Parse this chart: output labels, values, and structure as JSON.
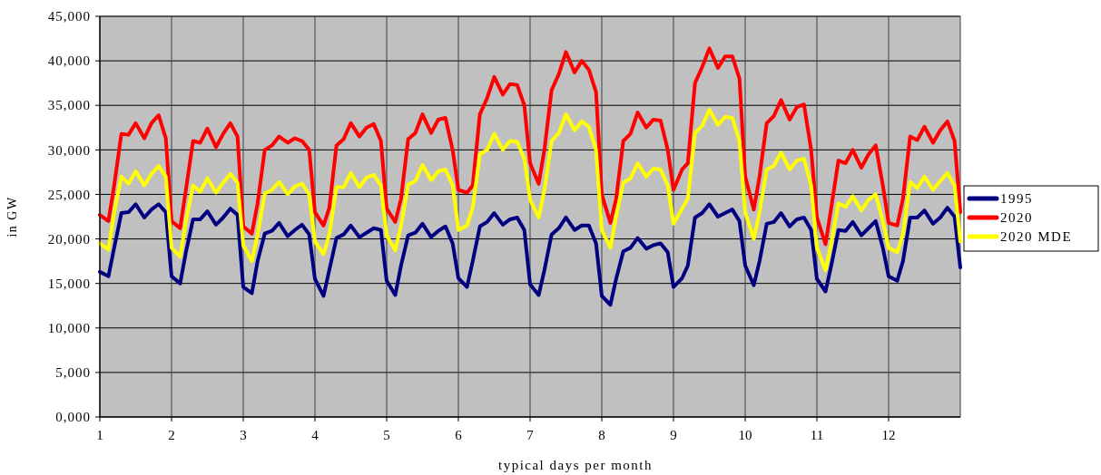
{
  "chart_data": {
    "type": "line",
    "xlabel": "typical days per month",
    "ylabel": "in GW",
    "x": [
      1,
      1.12,
      1.2,
      1.3,
      1.4,
      1.5,
      1.62,
      1.72,
      1.82,
      1.92,
      2,
      2.12,
      2.2,
      2.3,
      2.4,
      2.5,
      2.62,
      2.72,
      2.82,
      2.92,
      3,
      3.12,
      3.2,
      3.3,
      3.4,
      3.5,
      3.62,
      3.72,
      3.82,
      3.92,
      4,
      4.12,
      4.2,
      4.3,
      4.4,
      4.5,
      4.62,
      4.72,
      4.82,
      4.92,
      5,
      5.12,
      5.2,
      5.3,
      5.4,
      5.5,
      5.62,
      5.72,
      5.82,
      5.92,
      6,
      6.12,
      6.2,
      6.3,
      6.4,
      6.5,
      6.62,
      6.72,
      6.82,
      6.92,
      7,
      7.12,
      7.2,
      7.3,
      7.4,
      7.5,
      7.62,
      7.72,
      7.82,
      7.92,
      8,
      8.12,
      8.2,
      8.3,
      8.4,
      8.5,
      8.62,
      8.72,
      8.82,
      8.92,
      9,
      9.12,
      9.2,
      9.3,
      9.4,
      9.5,
      9.62,
      9.72,
      9.82,
      9.92,
      10,
      10.12,
      10.2,
      10.3,
      10.4,
      10.5,
      10.62,
      10.72,
      10.82,
      10.92,
      11,
      11.12,
      11.2,
      11.3,
      11.4,
      11.5,
      11.62,
      11.72,
      11.82,
      11.92,
      12,
      12.12,
      12.2,
      12.3,
      12.4,
      12.5,
      12.62,
      12.72,
      12.82,
      12.92,
      13
    ],
    "series": [
      {
        "name": "1995",
        "color": "#000080",
        "values": [
          16300,
          15800,
          19000,
          22900,
          23000,
          23900,
          22400,
          23300,
          23900,
          23000,
          15800,
          15000,
          18500,
          22200,
          22200,
          23100,
          21600,
          22400,
          23400,
          22700,
          14600,
          13900,
          17500,
          20600,
          20900,
          21800,
          20300,
          21000,
          21600,
          20500,
          15500,
          13600,
          16500,
          20100,
          20500,
          21500,
          20200,
          20700,
          21200,
          21000,
          15300,
          13700,
          17000,
          20400,
          20700,
          21700,
          20200,
          20900,
          21400,
          19500,
          15600,
          14600,
          17500,
          21400,
          21900,
          22900,
          21600,
          22200,
          22400,
          21000,
          14900,
          13700,
          16500,
          20500,
          21200,
          22400,
          21000,
          21500,
          21500,
          19500,
          13600,
          12600,
          15500,
          18600,
          19000,
          20100,
          18900,
          19300,
          19500,
          18500,
          14600,
          15600,
          17000,
          22400,
          22900,
          23900,
          22500,
          22900,
          23300,
          22000,
          17000,
          14800,
          17500,
          21700,
          21900,
          22900,
          21400,
          22200,
          22400,
          21000,
          15500,
          14100,
          17000,
          21000,
          20900,
          21900,
          20400,
          21200,
          22000,
          19000,
          15800,
          15300,
          17500,
          22400,
          22400,
          23200,
          21700,
          22400,
          23500,
          22500,
          16800
        ]
      },
      {
        "name": "2020",
        "color": "#ff0000",
        "values": [
          22700,
          22000,
          26000,
          31800,
          31700,
          33000,
          31300,
          33000,
          33900,
          31300,
          22000,
          21200,
          25500,
          31000,
          30800,
          32400,
          30300,
          31800,
          33000,
          31500,
          21400,
          20600,
          24000,
          30000,
          30500,
          31500,
          30800,
          31300,
          31000,
          30000,
          23000,
          21500,
          23500,
          30500,
          31200,
          33000,
          31500,
          32500,
          32900,
          31000,
          23400,
          21900,
          24500,
          31200,
          31900,
          34000,
          31900,
          33400,
          33600,
          30000,
          25500,
          25200,
          26000,
          34000,
          35800,
          38200,
          36200,
          37400,
          37300,
          35000,
          28500,
          26200,
          30000,
          36700,
          38500,
          41000,
          38700,
          40000,
          39000,
          36500,
          25000,
          21800,
          24500,
          31000,
          31800,
          34200,
          32500,
          33400,
          33300,
          30000,
          25500,
          27800,
          28500,
          37500,
          39300,
          41400,
          39200,
          40500,
          40500,
          38000,
          27000,
          23300,
          27000,
          33000,
          33800,
          35600,
          33400,
          34800,
          35100,
          30000,
          22400,
          19400,
          23500,
          28800,
          28500,
          30000,
          28000,
          29500,
          30500,
          26000,
          21800,
          21500,
          24500,
          31500,
          31100,
          32600,
          30800,
          32200,
          33200,
          31000,
          23000
        ]
      },
      {
        "name": "2020 MDE",
        "color": "#ffff00",
        "values": [
          19500,
          18800,
          23000,
          27000,
          26200,
          27600,
          26000,
          27300,
          28200,
          27000,
          19000,
          18000,
          22000,
          26000,
          25300,
          26800,
          25200,
          26300,
          27300,
          26300,
          19300,
          17500,
          20500,
          25100,
          25500,
          26400,
          25000,
          25900,
          26200,
          25000,
          19700,
          18300,
          20500,
          25800,
          25800,
          27400,
          25800,
          26900,
          27200,
          26000,
          20400,
          18700,
          21500,
          26100,
          26500,
          28300,
          26600,
          27600,
          27800,
          26000,
          21000,
          21500,
          23500,
          29500,
          30000,
          31800,
          30000,
          31000,
          30900,
          29000,
          24400,
          22400,
          25500,
          31000,
          31900,
          34000,
          32200,
          33200,
          32600,
          30000,
          21000,
          19000,
          22500,
          26300,
          26800,
          28500,
          27000,
          27900,
          27800,
          26000,
          21700,
          23400,
          24500,
          31900,
          32700,
          34500,
          32800,
          33700,
          33600,
          31000,
          23000,
          20000,
          23000,
          27800,
          28200,
          29700,
          27800,
          28800,
          29000,
          26000,
          19000,
          16500,
          19500,
          24000,
          23600,
          24800,
          23200,
          24400,
          25000,
          22000,
          19000,
          18500,
          20500,
          26400,
          25700,
          27000,
          25500,
          26500,
          27400,
          26000,
          19700
        ]
      }
    ],
    "xlim": [
      1,
      13
    ],
    "xticks": [
      1,
      2,
      3,
      4,
      5,
      6,
      7,
      8,
      9,
      10,
      11,
      12
    ],
    "ylim": [
      0,
      45000
    ],
    "yticks": [
      {
        "value": 0,
        "label": "0,000"
      },
      {
        "value": 5000,
        "label": "5,000"
      },
      {
        "value": 10000,
        "label": "10,000"
      },
      {
        "value": 15000,
        "label": "15,000"
      },
      {
        "value": 20000,
        "label": "20,000"
      },
      {
        "value": 25000,
        "label": "25,000"
      },
      {
        "value": 30000,
        "label": "30,000"
      },
      {
        "value": 35000,
        "label": "35,000"
      },
      {
        "value": 40000,
        "label": "40,000"
      },
      {
        "value": 45000,
        "label": "45,000"
      }
    ],
    "grid": true,
    "legend": "right",
    "marker": "none",
    "line_style": "solid"
  }
}
